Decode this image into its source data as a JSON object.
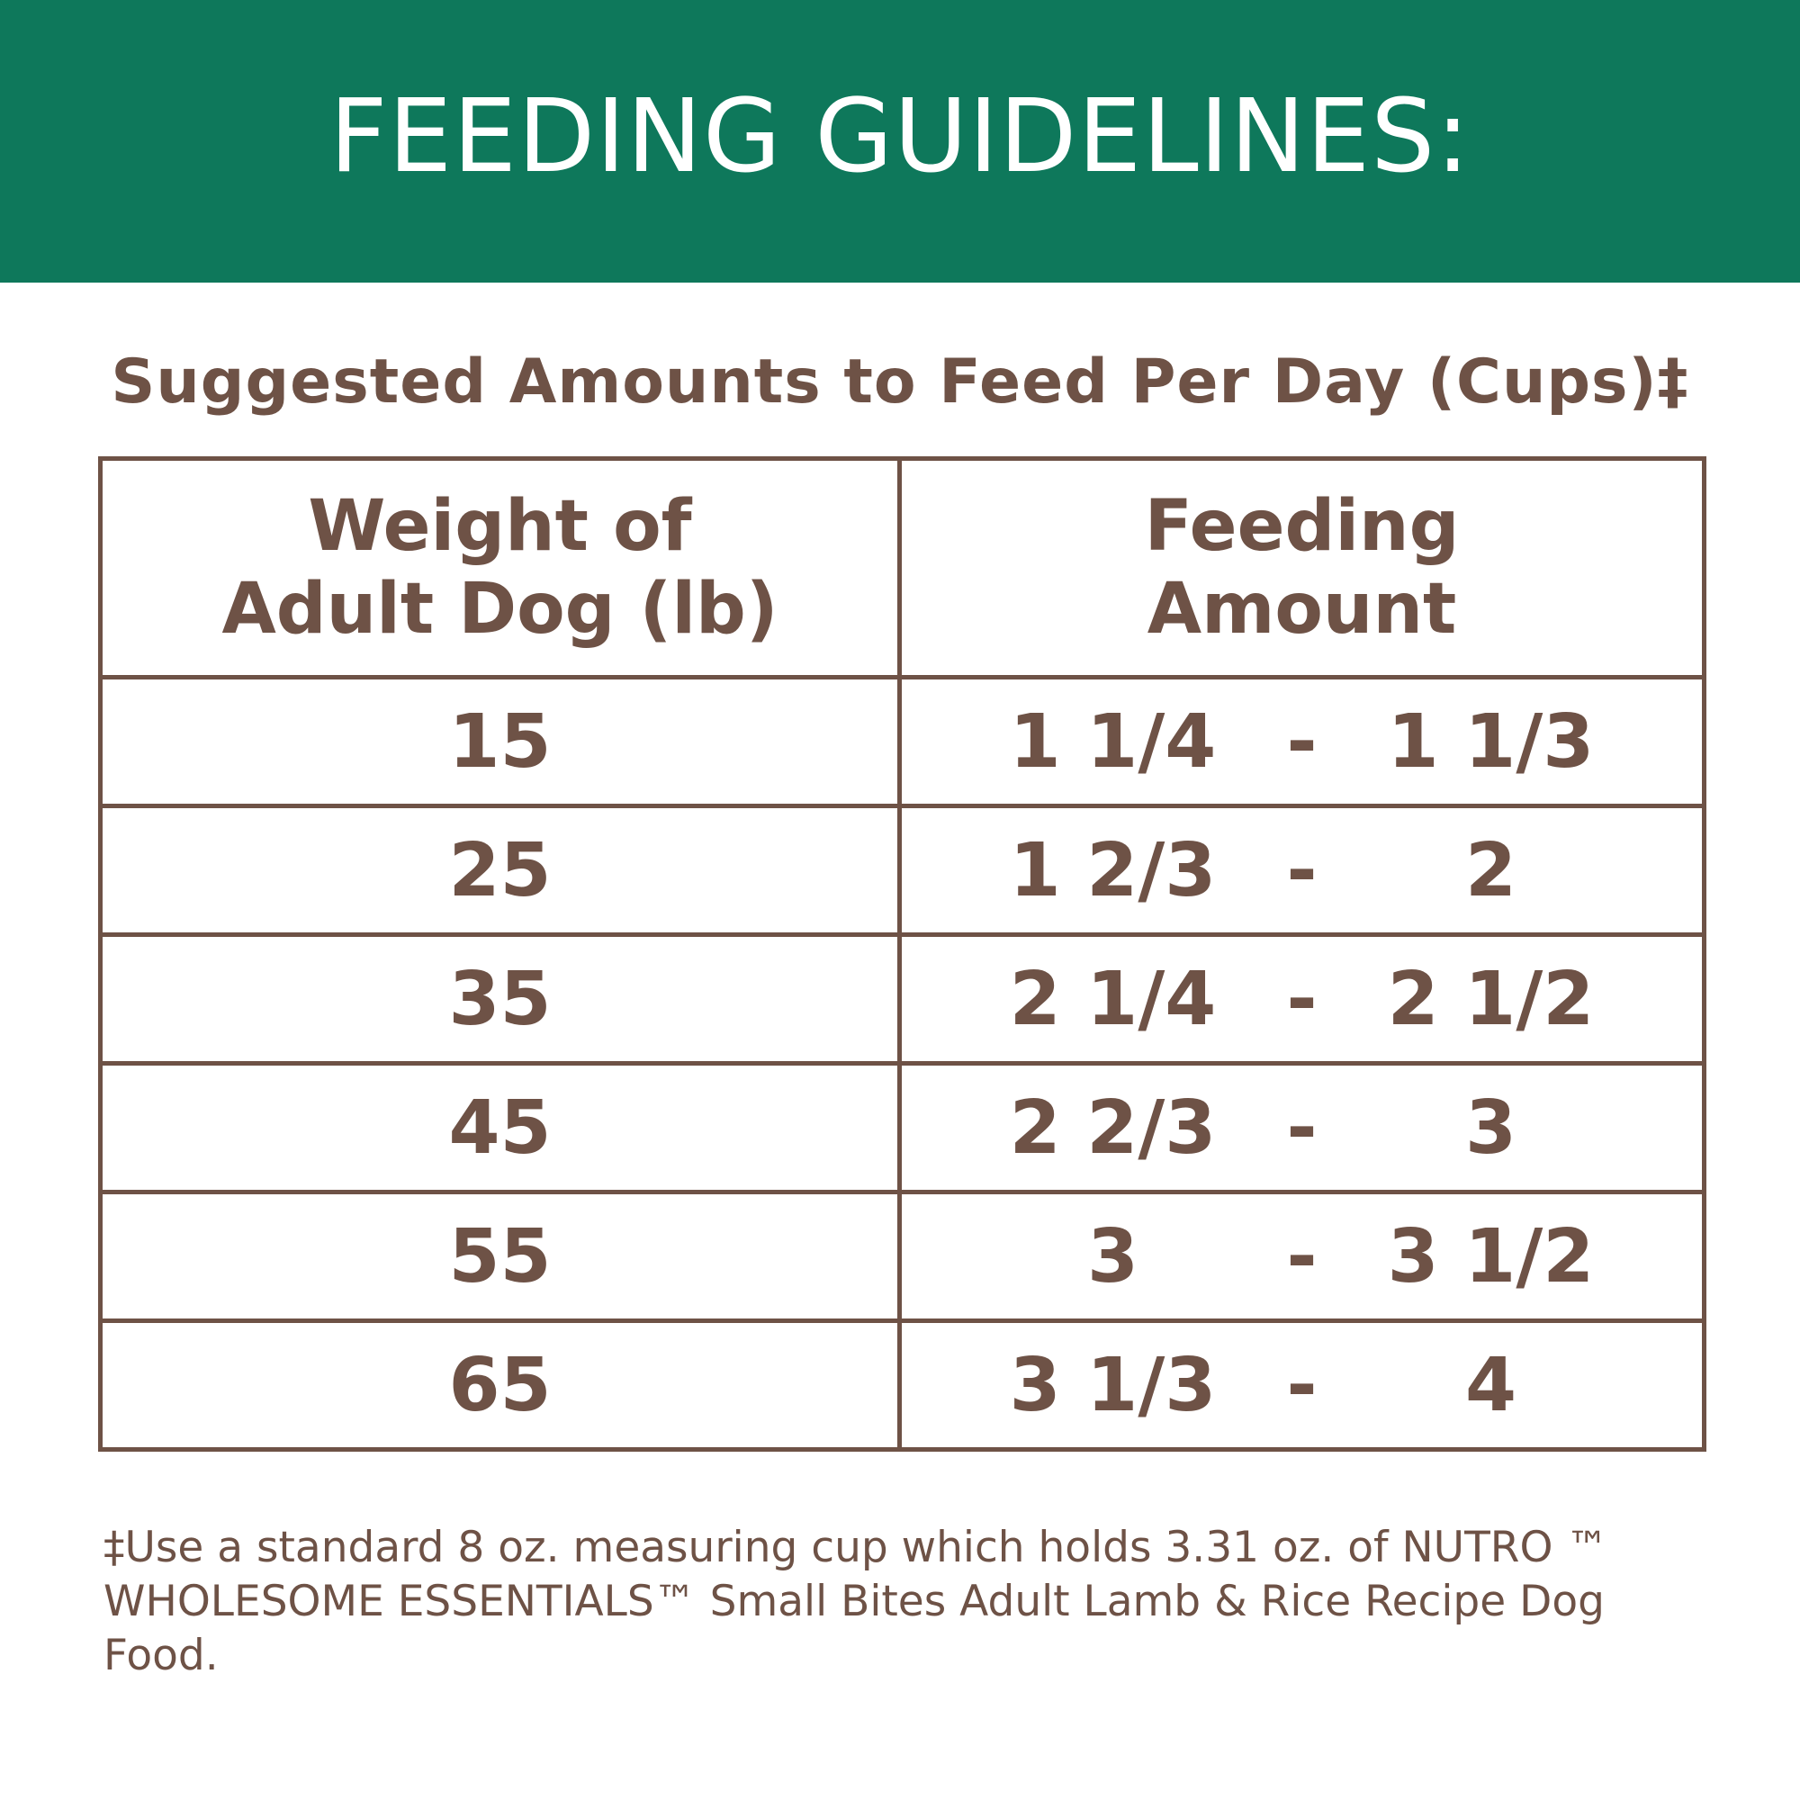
{
  "banner": {
    "title": "FEEDING GUIDELINES:"
  },
  "subtitle": "Suggested Amounts to Feed Per Day (Cups)‡",
  "table": {
    "headers": {
      "weight": [
        "Weight of",
        "Adult Dog (lb)"
      ],
      "amount": [
        "Feeding",
        "Amount"
      ]
    },
    "rows": [
      {
        "weight": "15",
        "low": "1 1/4",
        "dash": "-",
        "high": "1 1/3"
      },
      {
        "weight": "25",
        "low": "1 2/3",
        "dash": "-",
        "high": "2"
      },
      {
        "weight": "35",
        "low": "2 1/4",
        "dash": "-",
        "high": "2 1/2"
      },
      {
        "weight": "45",
        "low": "2 2/3",
        "dash": "-",
        "high": "3"
      },
      {
        "weight": "55",
        "low": "3",
        "dash": "-",
        "high": "3 1/2"
      },
      {
        "weight": "65",
        "low": "3 1/3",
        "dash": "-",
        "high": "4"
      }
    ]
  },
  "footnote": "‡Use a standard 8 oz. measuring cup which holds 3.31 oz. of NUTRO ™ WHOLESOME ESSENTIALS™ Small Bites Adult Lamb & Rice Recipe Dog Food.",
  "colors": {
    "banner_green": "#0e785b",
    "text_brown": "#6e5246"
  }
}
